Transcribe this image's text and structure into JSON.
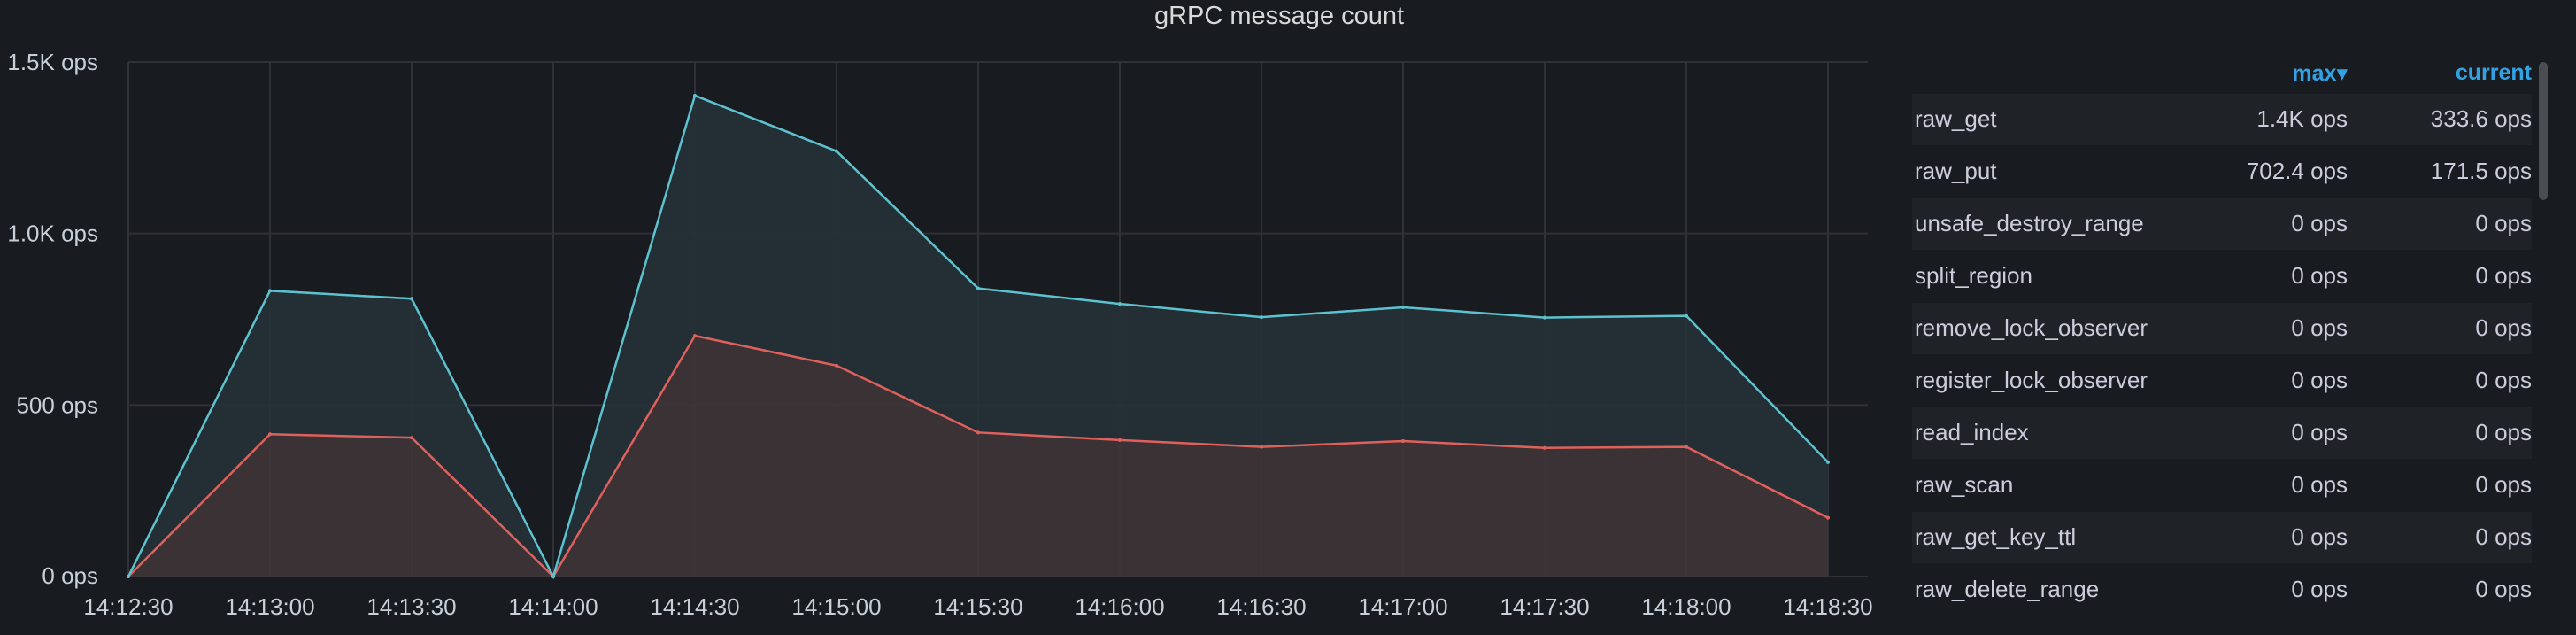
{
  "panel": {
    "title": "gRPC message count"
  },
  "chart_data": {
    "type": "area",
    "title": "gRPC message count",
    "y_unit": "ops",
    "ylim": [
      0,
      1500
    ],
    "y_ticks": [
      0,
      500,
      1000,
      1500
    ],
    "y_tick_labels": [
      "0 ops",
      "500 ops",
      "1.0K ops",
      "1.5K ops"
    ],
    "x": [
      "14:12:30",
      "14:13:00",
      "14:13:30",
      "14:14:00",
      "14:14:30",
      "14:15:00",
      "14:15:30",
      "14:16:00",
      "14:16:30",
      "14:17:00",
      "14:17:30",
      "14:18:00",
      "14:18:30"
    ],
    "x_tick_labels": [
      "14:12:30",
      "14:13:00",
      "14:13:30",
      "14:14:00",
      "14:14:30",
      "14:15:00",
      "14:15:30",
      "14:16:00",
      "14:16:30",
      "14:17:00",
      "14:17:30",
      "14:18:00",
      "14:18:30"
    ],
    "stacked": true,
    "grid": true,
    "legend_position": "right",
    "series": [
      {
        "name": "raw_put",
        "color": "#e0605c",
        "values": [
          0,
          415,
          405,
          0,
          702,
          615,
          420,
          398,
          378,
          395,
          375,
          378,
          171.5
        ]
      },
      {
        "name": "raw_get",
        "color": "#5dc2cf",
        "values": [
          0,
          418,
          405,
          0,
          700,
          625,
          420,
          397,
          378,
          390,
          380,
          382,
          162
        ]
      }
    ]
  },
  "legend": {
    "headers": {
      "max": "max▾",
      "current": "current"
    },
    "rows": [
      {
        "name": "raw_get",
        "max": "1.4K ops",
        "current": "333.6 ops"
      },
      {
        "name": "raw_put",
        "max": "702.4 ops",
        "current": "171.5 ops"
      },
      {
        "name": "unsafe_destroy_range",
        "max": "0 ops",
        "current": "0 ops"
      },
      {
        "name": "split_region",
        "max": "0 ops",
        "current": "0 ops"
      },
      {
        "name": "remove_lock_observer",
        "max": "0 ops",
        "current": "0 ops"
      },
      {
        "name": "register_lock_observer",
        "max": "0 ops",
        "current": "0 ops"
      },
      {
        "name": "read_index",
        "max": "0 ops",
        "current": "0 ops"
      },
      {
        "name": "raw_scan",
        "max": "0 ops",
        "current": "0 ops"
      },
      {
        "name": "raw_get_key_ttl",
        "max": "0 ops",
        "current": "0 ops"
      },
      {
        "name": "raw_delete_range",
        "max": "0 ops",
        "current": "0 ops"
      }
    ]
  }
}
